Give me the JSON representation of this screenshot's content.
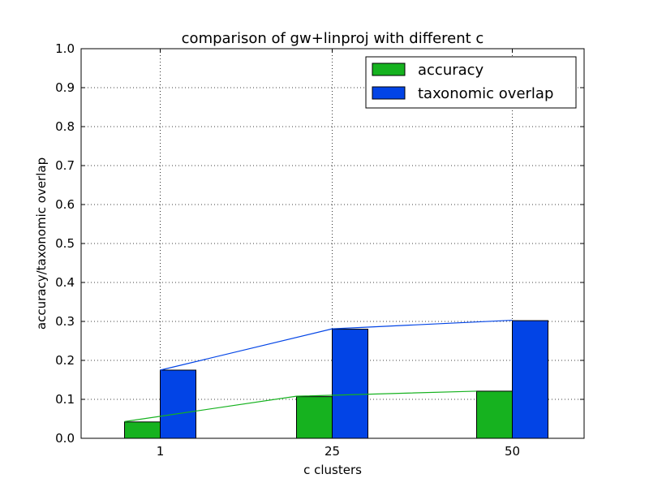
{
  "chart_data": {
    "type": "bar",
    "title": "comparison of gw+linproj with different c",
    "xlabel": "c clusters",
    "ylabel": "accuracy/taxonomic overlap",
    "categories": [
      "1",
      "25",
      "50"
    ],
    "ylim": [
      0.0,
      1.0
    ],
    "yticks": [
      "0.0",
      "0.1",
      "0.2",
      "0.3",
      "0.4",
      "0.5",
      "0.6",
      "0.7",
      "0.8",
      "0.9",
      "1.0"
    ],
    "grid": true,
    "legend_position": "top-right",
    "series": [
      {
        "name": "accuracy",
        "values": [
          0.042,
          0.107,
          0.121
        ],
        "color": "#16b21f",
        "trend_line": [
          0.043,
          0.108,
          0.121
        ]
      },
      {
        "name": "taxonomic overlap",
        "values": [
          0.175,
          0.28,
          0.302
        ],
        "color": "#0244e6",
        "trend_line": [
          0.175,
          0.281,
          0.303
        ]
      }
    ]
  }
}
